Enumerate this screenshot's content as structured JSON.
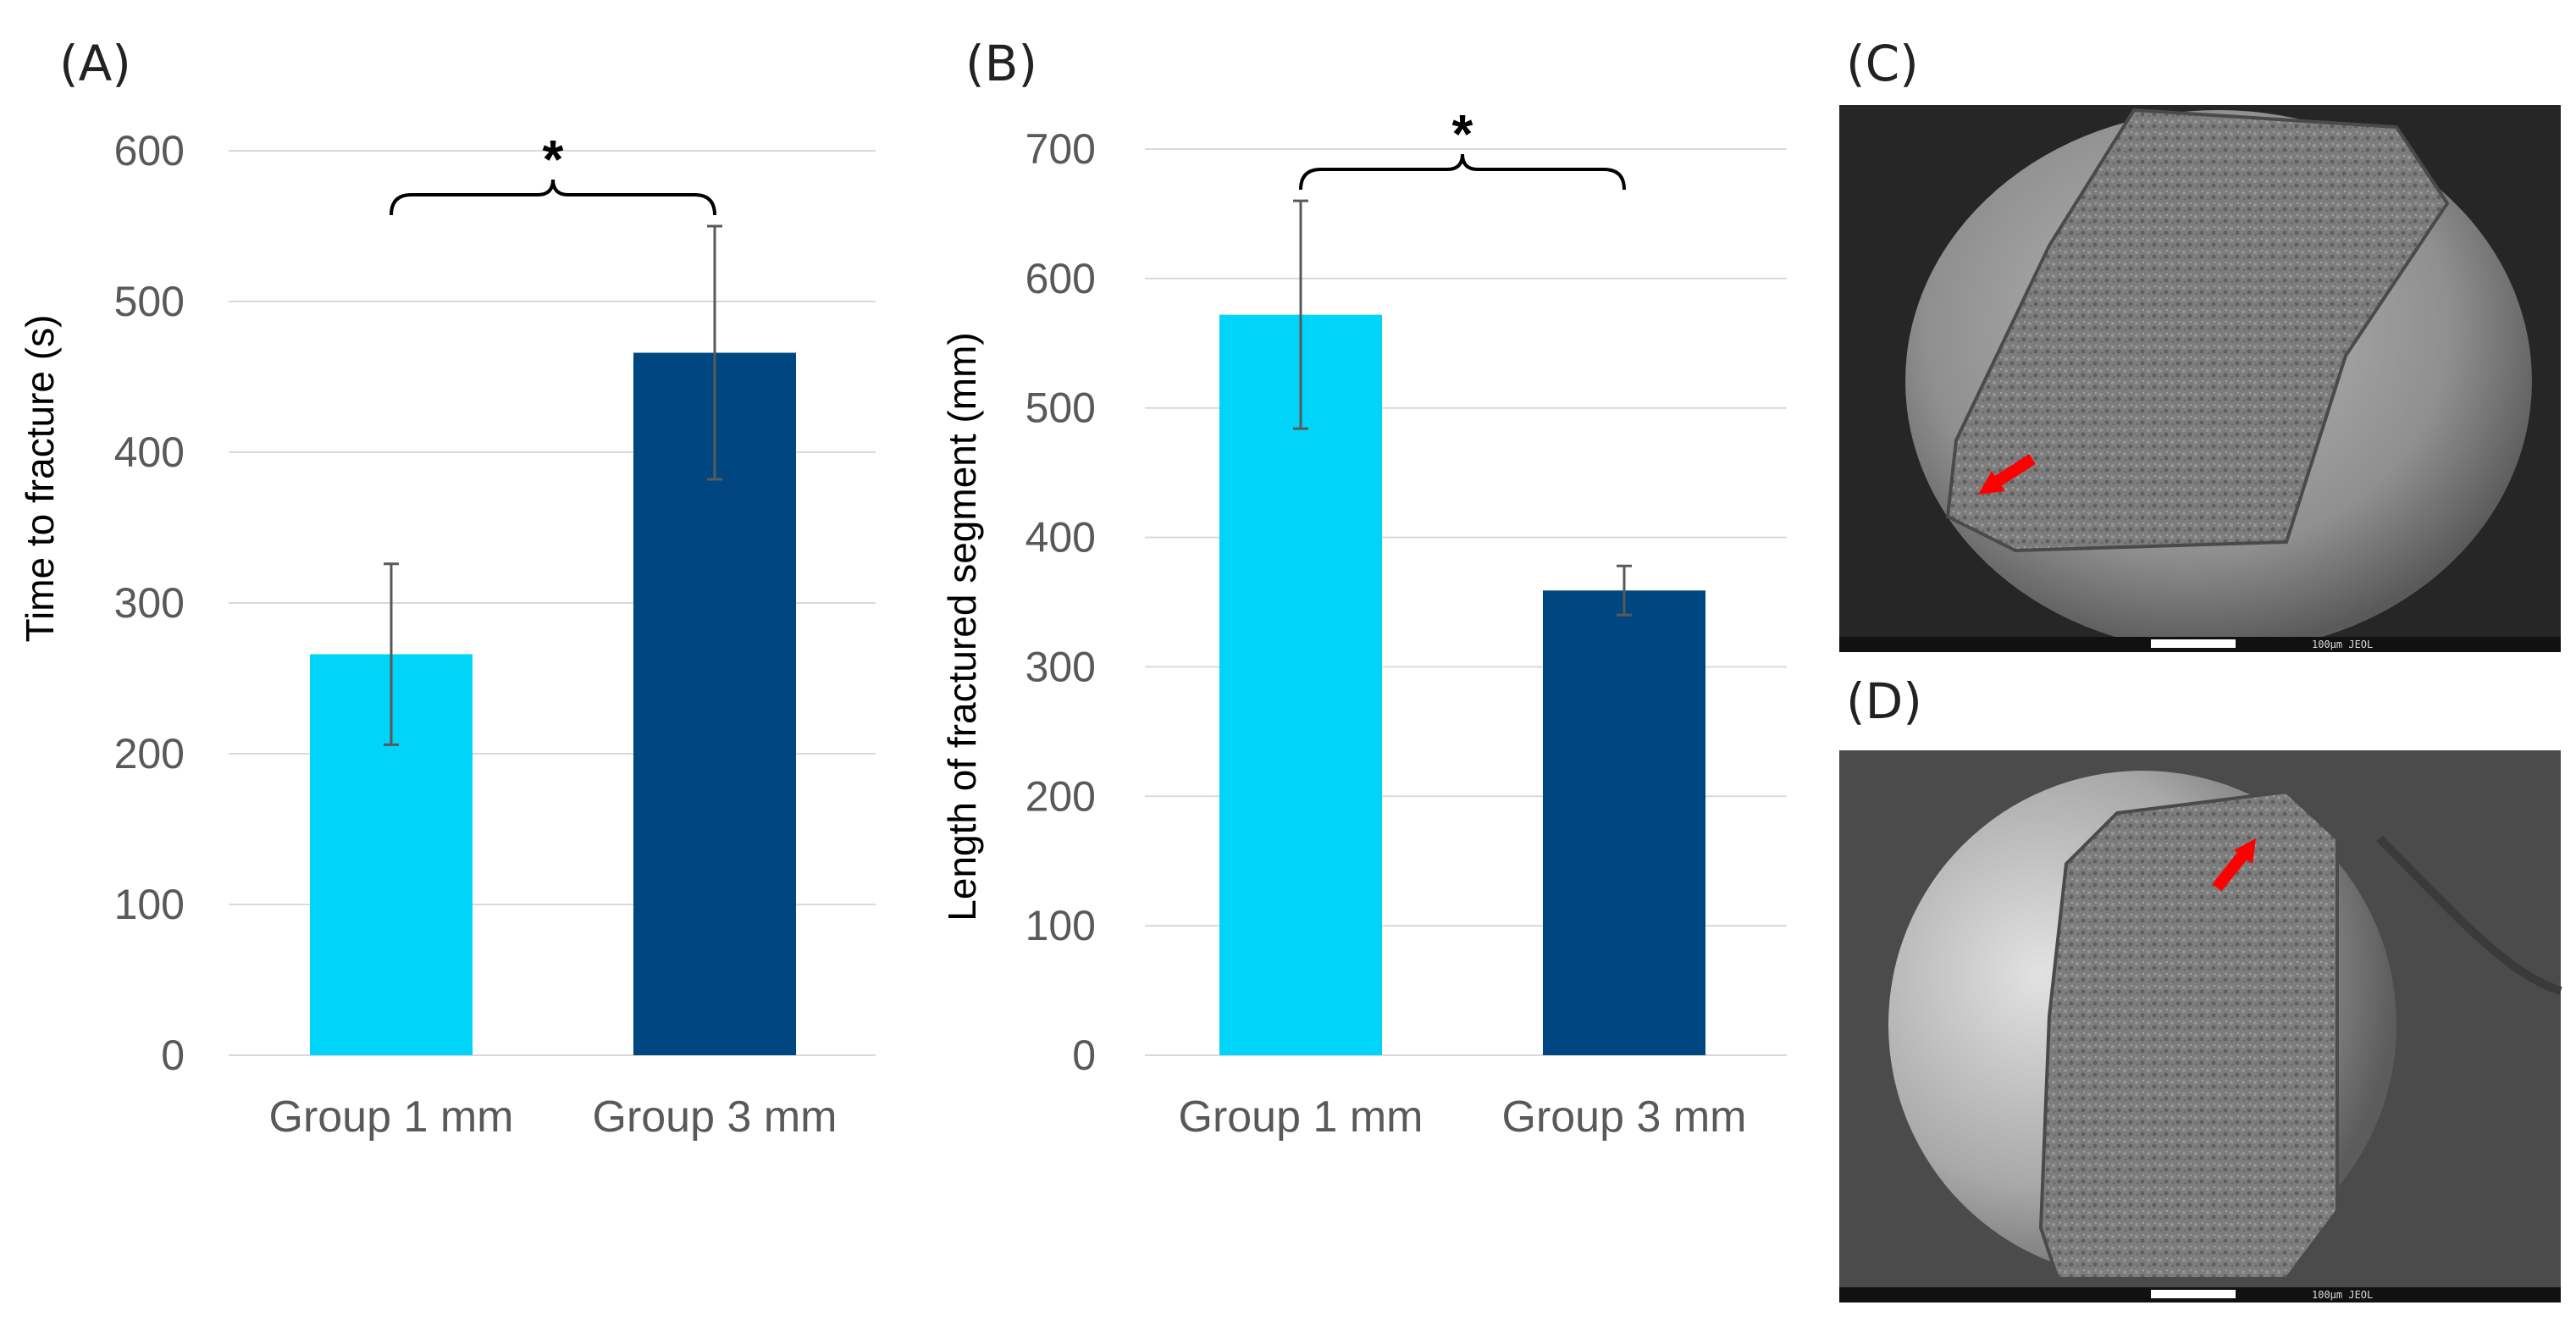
{
  "colors": {
    "group1": "#00D4F8",
    "group3": "#004680",
    "grid": "#D9D9D9",
    "errorbar": "#595959",
    "arrow": "#FF0000"
  },
  "panels": {
    "A": {
      "label": "(A)"
    },
    "B": {
      "label": "(B)"
    },
    "C": {
      "label": "(C)",
      "scale_text": "100μm JEOL"
    },
    "D": {
      "label": "(D)",
      "scale_text": "100μm JEOL"
    }
  },
  "chart_data": [
    {
      "type": "bar",
      "panel": "A",
      "title": "",
      "xlabel": "",
      "ylabel": "Time to fracture (s)",
      "categories": [
        "Group 1 mm",
        "Group 3 mm"
      ],
      "values": [
        266,
        466
      ],
      "error": [
        60,
        84
      ],
      "ylim": [
        0,
        600
      ],
      "yticks": [
        0,
        100,
        200,
        300,
        400,
        500,
        600
      ],
      "significance": "*",
      "grid": true
    },
    {
      "type": "bar",
      "panel": "B",
      "title": "",
      "xlabel": "",
      "ylabel": "Length of fractured segment (mm)",
      "categories": [
        "Group 1 mm",
        "Group 3 mm"
      ],
      "values": [
        572,
        359
      ],
      "error": [
        88,
        19
      ],
      "ylim": [
        0,
        700
      ],
      "yticks": [
        0,
        100,
        200,
        300,
        400,
        500,
        600,
        700
      ],
      "significance": "*",
      "grid": true
    }
  ]
}
